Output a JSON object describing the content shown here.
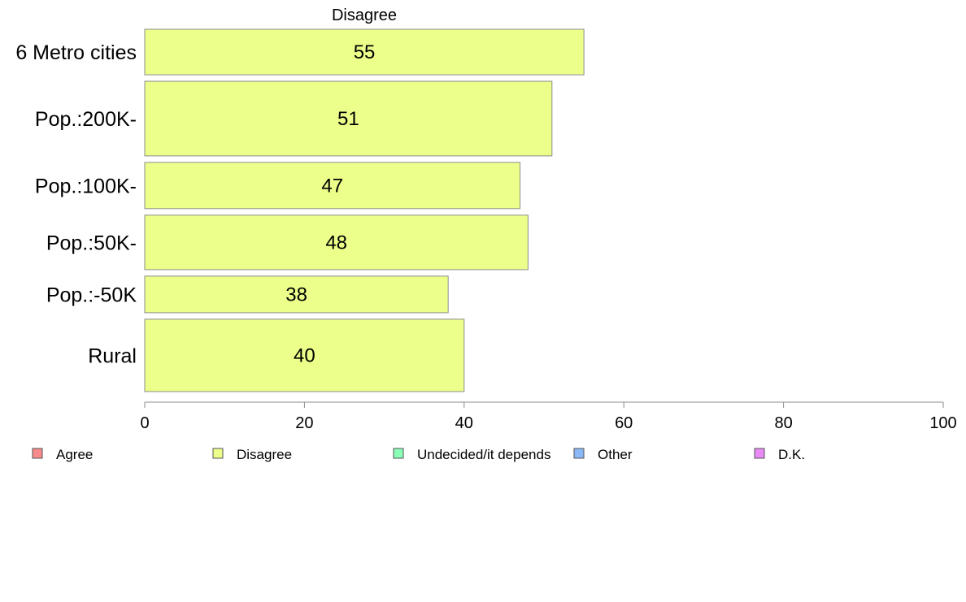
{
  "chart_data": {
    "type": "bar",
    "orientation": "horizontal",
    "title": "Disagree",
    "xlabel": "",
    "ylabel": "",
    "categories": [
      "6 Metro cities",
      "Pop.:200K-",
      "Pop.:100K-",
      "Pop.:50K-",
      "Pop.:-50K",
      "Rural"
    ],
    "values": [
      55,
      51,
      47,
      48,
      38,
      40
    ],
    "data_labels": [
      "55",
      "51",
      "47",
      "48",
      "38",
      "40"
    ],
    "category_weights": [
      0.61,
      1.0,
      0.62,
      0.73,
      0.49,
      0.97
    ],
    "xlim": [
      0,
      100
    ],
    "x_ticks": [
      0,
      20,
      40,
      60,
      80,
      100
    ],
    "x_tick_labels": [
      "0",
      "20",
      "40",
      "60",
      "80",
      "100"
    ],
    "grid": false,
    "bar_color": "#ebff8a",
    "legend_position": "bottom",
    "legend": [
      {
        "label": "Agree",
        "color": "#f78a8a"
      },
      {
        "label": "Disagree",
        "color": "#ebff8a"
      },
      {
        "label": "Undecided/it depends",
        "color": "#8affb6"
      },
      {
        "label": "Other",
        "color": "#8ab8f7"
      },
      {
        "label": "D.K.",
        "color": "#e98af7"
      }
    ]
  }
}
